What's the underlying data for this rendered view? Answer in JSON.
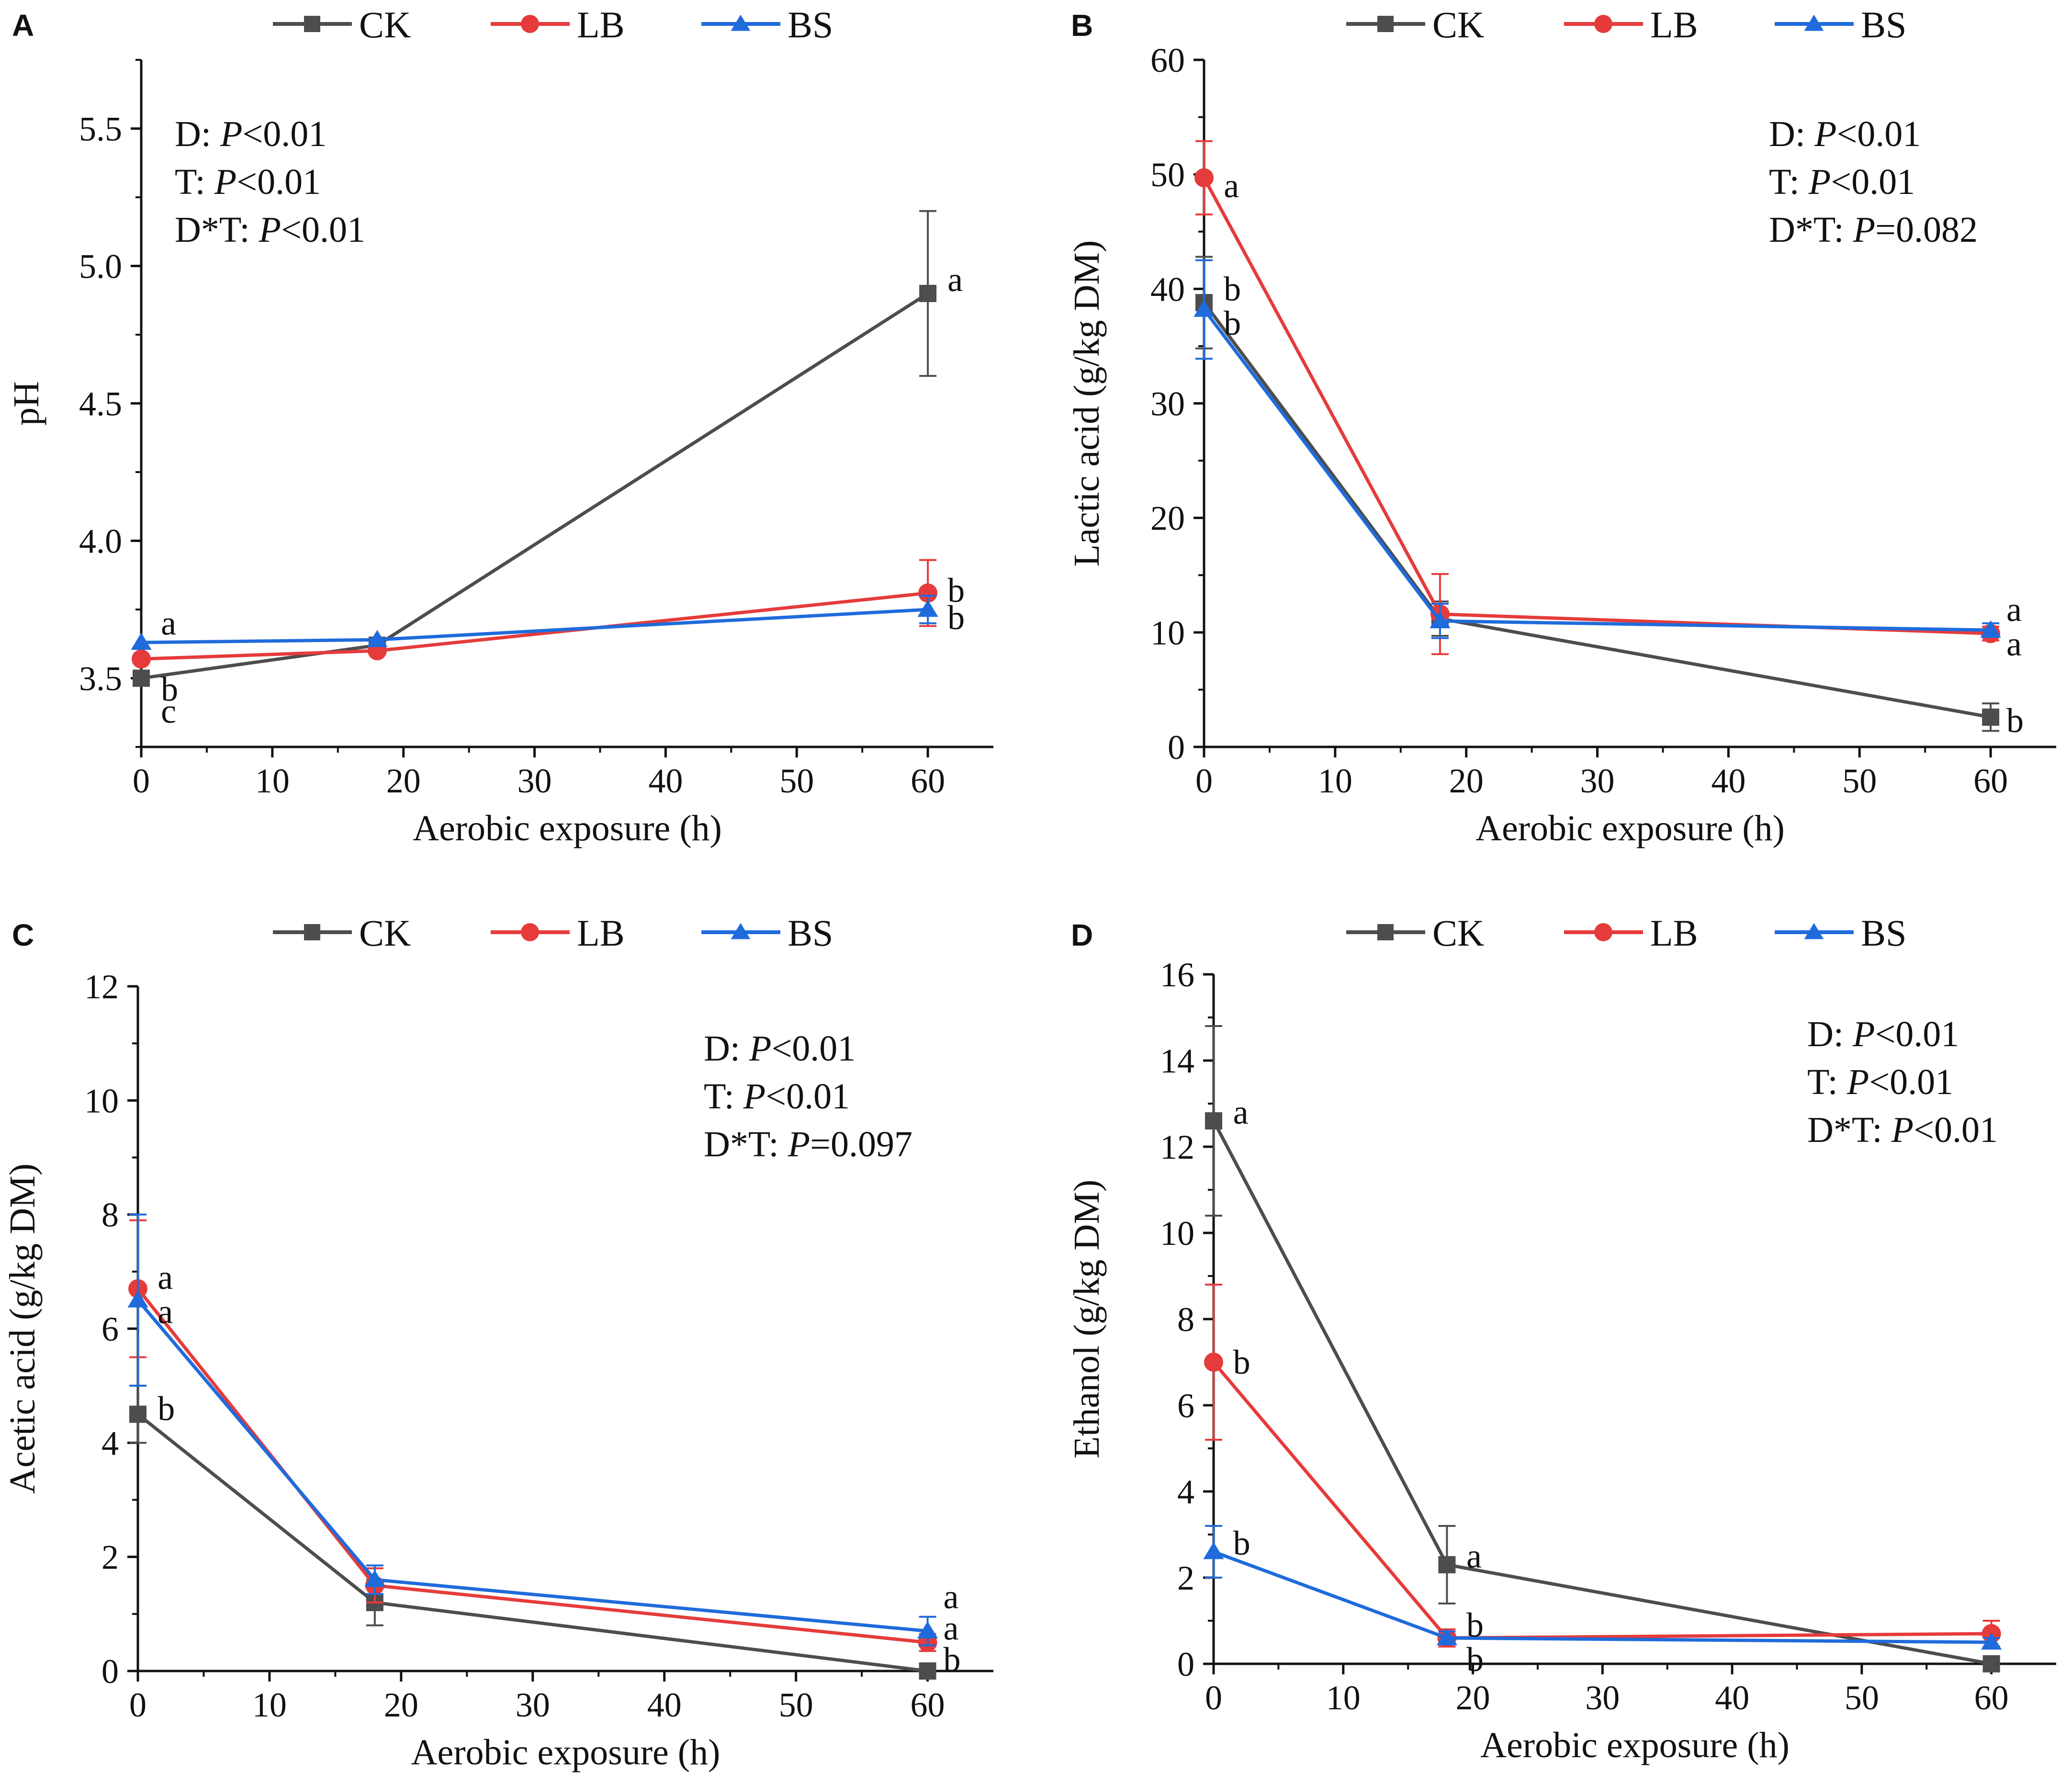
{
  "figure": {
    "series_styles": [
      {
        "key": "CK",
        "color": "#4d4d4d",
        "marker": "square"
      },
      {
        "key": "LB",
        "color": "#e63b3b",
        "marker": "circle"
      },
      {
        "key": "BS",
        "color": "#1f6bdc",
        "marker": "triangle"
      }
    ]
  },
  "chart_data": [
    {
      "panel": "A",
      "type": "line",
      "xlabel": "Aerobic exposure (h)",
      "ylabel": "pH",
      "xlim": [
        0,
        65
      ],
      "ylim": [
        3.25,
        5.75
      ],
      "xticks": [
        0,
        10,
        20,
        30,
        40,
        50,
        60
      ],
      "yticks": [
        3.5,
        4.0,
        4.5,
        5.0,
        5.5
      ],
      "ytick_labels": [
        "3.5",
        "4.0",
        "4.5",
        "5.0",
        "5.5"
      ],
      "legend": [
        "CK",
        "LB",
        "BS"
      ],
      "stats": [
        {
          "prefix": "D: ",
          "p": "P",
          "rest": "<0.01"
        },
        {
          "prefix": "T: ",
          "p": "P",
          "rest": "<0.01"
        },
        {
          "prefix": "D*T: ",
          "p": "P",
          "rest": "<0.01"
        }
      ],
      "x": [
        0,
        18,
        60
      ],
      "series": [
        {
          "name": "CK",
          "values": [
            3.5,
            3.62,
            4.9
          ],
          "errors": [
            0.0,
            0.0,
            0.3
          ]
        },
        {
          "name": "LB",
          "values": [
            3.57,
            3.6,
            3.81
          ],
          "errors": [
            0.0,
            0.0,
            0.12
          ]
        },
        {
          "name": "BS",
          "values": [
            3.63,
            3.64,
            3.75
          ],
          "errors": [
            0.0,
            0.0,
            0.05
          ]
        }
      ],
      "annotations": [
        {
          "text": "a",
          "x": 1.5,
          "y": 3.7
        },
        {
          "text": "b",
          "x": 1.5,
          "y": 3.46
        },
        {
          "text": "c",
          "x": 1.5,
          "y": 3.38
        },
        {
          "text": "a",
          "x": 61.5,
          "y": 4.95
        },
        {
          "text": "b",
          "x": 61.5,
          "y": 3.82
        },
        {
          "text": "b",
          "x": 61.5,
          "y": 3.72
        }
      ]
    },
    {
      "panel": "B",
      "type": "line",
      "xlabel": "Aerobic exposure (h)",
      "ylabel": "Lactic acid (g/kg DM)",
      "xlim": [
        0,
        65
      ],
      "ylim": [
        0,
        60
      ],
      "xticks": [
        0,
        10,
        20,
        30,
        40,
        50,
        60
      ],
      "yticks": [
        0,
        10,
        20,
        30,
        40,
        50,
        60
      ],
      "ytick_labels": [
        "0",
        "10",
        "20",
        "30",
        "40",
        "50",
        "60"
      ],
      "legend": [
        "CK",
        "LB",
        "BS"
      ],
      "stats": [
        {
          "prefix": "D: ",
          "p": "P",
          "rest": "<0.01"
        },
        {
          "prefix": "T: ",
          "p": "P",
          "rest": "<0.01"
        },
        {
          "prefix": "D*T: ",
          "p": "P",
          "rest": "=0.082"
        }
      ],
      "x": [
        0,
        18,
        60
      ],
      "series": [
        {
          "name": "CK",
          "values": [
            38.8,
            11.2,
            2.6
          ],
          "errors": [
            4.0,
            1.5,
            1.2
          ]
        },
        {
          "name": "LB",
          "values": [
            49.7,
            11.6,
            9.9
          ],
          "errors": [
            3.2,
            3.5,
            0.6
          ]
        },
        {
          "name": "BS",
          "values": [
            38.2,
            11.0,
            10.2
          ],
          "errors": [
            4.3,
            1.5,
            0.6
          ]
        }
      ],
      "annotations": [
        {
          "text": "a",
          "x": 1.5,
          "y": 49.0
        },
        {
          "text": "b",
          "x": 1.5,
          "y": 40.0
        },
        {
          "text": "b",
          "x": 1.5,
          "y": 37.0
        },
        {
          "text": "a",
          "x": 61.2,
          "y": 12.0
        },
        {
          "text": "a",
          "x": 61.2,
          "y": 9.0
        },
        {
          "text": "b",
          "x": 61.2,
          "y": 2.3
        }
      ]
    },
    {
      "panel": "C",
      "type": "line",
      "xlabel": "Aerobic exposure (h)",
      "ylabel": "Acetic acid (g/kg DM)",
      "xlim": [
        0,
        65
      ],
      "ylim": [
        0,
        12
      ],
      "xticks": [
        0,
        10,
        20,
        30,
        40,
        50,
        60
      ],
      "yticks": [
        0,
        2,
        4,
        6,
        8,
        10,
        12
      ],
      "ytick_labels": [
        "0",
        "2",
        "4",
        "6",
        "8",
        "10",
        "12"
      ],
      "legend": [
        "CK",
        "LB",
        "BS"
      ],
      "stats": [
        {
          "prefix": "D: ",
          "p": "P",
          "rest": "<0.01"
        },
        {
          "prefix": "T: ",
          "p": "P",
          "rest": "<0.01"
        },
        {
          "prefix": "D*T: ",
          "p": "P",
          "rest": "=0.097"
        }
      ],
      "x": [
        0,
        18,
        60
      ],
      "series": [
        {
          "name": "CK",
          "values": [
            4.5,
            1.2,
            0.0
          ],
          "errors": [
            0.5,
            0.4,
            0.0
          ]
        },
        {
          "name": "LB",
          "values": [
            6.7,
            1.5,
            0.5
          ],
          "errors": [
            1.2,
            0.3,
            0.15
          ]
        },
        {
          "name": "BS",
          "values": [
            6.5,
            1.6,
            0.7
          ],
          "errors": [
            1.5,
            0.25,
            0.25
          ]
        }
      ],
      "annotations": [
        {
          "text": "a",
          "x": 1.5,
          "y": 6.9
        },
        {
          "text": "a",
          "x": 1.5,
          "y": 6.3
        },
        {
          "text": "b",
          "x": 1.5,
          "y": 4.6
        },
        {
          "text": "a",
          "x": 61.2,
          "y": 1.3
        },
        {
          "text": "a",
          "x": 61.2,
          "y": 0.75
        },
        {
          "text": "b",
          "x": 61.2,
          "y": 0.2
        }
      ]
    },
    {
      "panel": "D",
      "type": "line",
      "xlabel": "Aerobic exposure (h)",
      "ylabel": "Ethanol (g/kg DM)",
      "xlim": [
        0,
        65
      ],
      "ylim": [
        0,
        16
      ],
      "xticks": [
        0,
        10,
        20,
        30,
        40,
        50,
        60
      ],
      "yticks": [
        0,
        2,
        4,
        6,
        8,
        10,
        12,
        14,
        16
      ],
      "ytick_labels": [
        "0",
        "2",
        "4",
        "6",
        "8",
        "10",
        "12",
        "14",
        "16"
      ],
      "legend": [
        "CK",
        "LB",
        "BS"
      ],
      "stats": [
        {
          "prefix": "D: ",
          "p": "P",
          "rest": "<0.01"
        },
        {
          "prefix": "T: ",
          "p": "P",
          "rest": "<0.01"
        },
        {
          "prefix": "D*T: ",
          "p": "P",
          "rest": "<0.01"
        }
      ],
      "x": [
        0,
        18,
        60
      ],
      "series": [
        {
          "name": "CK",
          "values": [
            12.6,
            2.3,
            0.0
          ],
          "errors": [
            2.2,
            0.9,
            0.0
          ]
        },
        {
          "name": "LB",
          "values": [
            7.0,
            0.6,
            0.7
          ],
          "errors": [
            1.8,
            0.2,
            0.3
          ]
        },
        {
          "name": "BS",
          "values": [
            2.6,
            0.6,
            0.5
          ],
          "errors": [
            0.6,
            0.15,
            0.1
          ]
        }
      ],
      "annotations": [
        {
          "text": "a",
          "x": 1.5,
          "y": 12.8
        },
        {
          "text": "b",
          "x": 1.5,
          "y": 7.0
        },
        {
          "text": "b",
          "x": 1.5,
          "y": 2.8
        },
        {
          "text": "a",
          "x": 19.5,
          "y": 2.5
        },
        {
          "text": "b",
          "x": 19.5,
          "y": 0.9
        },
        {
          "text": "b",
          "x": 19.5,
          "y": 0.1
        }
      ]
    }
  ]
}
